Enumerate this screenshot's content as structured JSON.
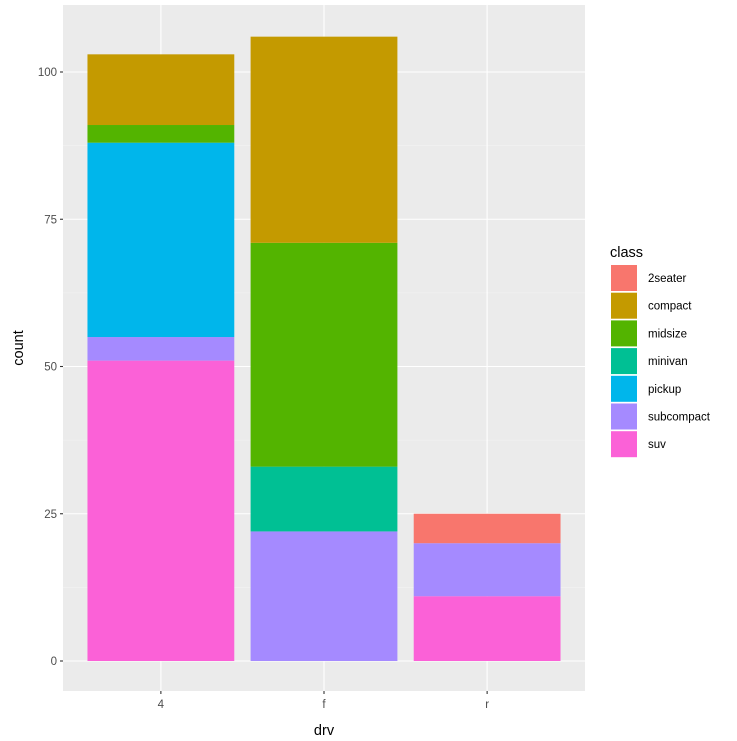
{
  "chart_data": {
    "type": "bar",
    "stacked": true,
    "title": "",
    "xlabel": "drv",
    "ylabel": "count",
    "categories": [
      "4",
      "f",
      "r"
    ],
    "ylim": [
      -5.3,
      111.3
    ],
    "yticks": [
      0,
      25,
      50,
      75,
      100
    ],
    "ytick_labels": [
      "0",
      "25",
      "50",
      "75",
      "100"
    ],
    "grid": true,
    "legend": {
      "title": "class",
      "position": "right"
    },
    "series": [
      {
        "name": "2seater",
        "color": "#F8766D",
        "values": [
          0,
          0,
          5
        ]
      },
      {
        "name": "compact",
        "color": "#C49A00",
        "values": [
          12,
          35,
          0
        ]
      },
      {
        "name": "midsize",
        "color": "#53B400",
        "values": [
          3,
          38,
          0
        ]
      },
      {
        "name": "minivan",
        "color": "#00C094",
        "values": [
          0,
          11,
          0
        ]
      },
      {
        "name": "pickup",
        "color": "#00B6EB",
        "values": [
          33,
          0,
          0
        ]
      },
      {
        "name": "subcompact",
        "color": "#A58AFF",
        "values": [
          4,
          22,
          9
        ]
      },
      {
        "name": "suv",
        "color": "#FB61D7",
        "values": [
          51,
          0,
          11
        ]
      }
    ],
    "totals": [
      103,
      106,
      25
    ]
  },
  "theme": {
    "panel_bg": "#EBEBEB",
    "grid_major": "#FFFFFF",
    "grid_minor": "#F5F5F5"
  }
}
